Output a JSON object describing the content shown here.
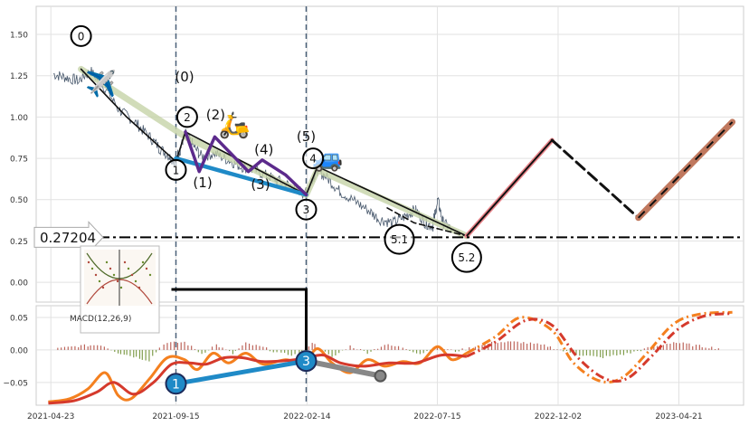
{
  "chart_data": [
    {
      "type": "line",
      "panel": "price",
      "title": "",
      "xlabel": "",
      "ylabel": "",
      "ylim": [
        -0.12,
        1.67
      ],
      "y_ticks": [
        0.0,
        0.25,
        0.5,
        0.75,
        1.0,
        1.25,
        1.5
      ],
      "y_tick_labels": [
        "0.00",
        "0.25",
        "0.50",
        "0.75",
        "1.00",
        "1.25",
        "1.50"
      ],
      "x_range": [
        "2021-04-06",
        "2023-07-05"
      ],
      "x_ticks": [
        "2021-04-23",
        "2021-09-15",
        "2022-02-14",
        "2022-07-15",
        "2022-12-02",
        "2023-04-21"
      ],
      "grid": true,
      "vertical_markers": [
        "2021-09-15",
        "2022-02-13"
      ],
      "reference_line": {
        "y": 0.27204,
        "label": "0.27204",
        "style": "dash-dot",
        "color": "#000000"
      },
      "series": [
        {
          "role": "price",
          "color": "#4a5a6e",
          "points": [
            [
              "2021-04-26",
              1.26
            ],
            [
              "2021-05-10",
              1.24
            ],
            [
              "2021-05-26",
              1.22
            ],
            [
              "2021-06-08",
              1.28
            ],
            [
              "2021-06-25",
              1.18
            ],
            [
              "2021-07-12",
              1.04
            ],
            [
              "2021-07-28",
              0.98
            ],
            [
              "2021-08-12",
              0.9
            ],
            [
              "2021-08-26",
              0.82
            ],
            [
              "2021-09-08",
              0.76
            ],
            [
              "2021-09-14",
              0.73
            ],
            [
              "2021-09-20",
              0.8
            ],
            [
              "2021-09-26",
              0.9
            ],
            [
              "2021-10-04",
              0.84
            ],
            [
              "2021-10-15",
              0.76
            ],
            [
              "2021-10-30",
              0.78
            ],
            [
              "2021-11-15",
              0.74
            ],
            [
              "2021-11-30",
              0.7
            ],
            [
              "2021-12-15",
              0.68
            ],
            [
              "2022-01-01",
              0.64
            ],
            [
              "2022-01-18",
              0.6
            ],
            [
              "2022-02-01",
              0.57
            ],
            [
              "2022-02-13",
              0.53
            ],
            [
              "2022-02-20",
              0.62
            ],
            [
              "2022-02-26",
              0.68
            ],
            [
              "2022-03-08",
              0.64
            ],
            [
              "2022-03-22",
              0.56
            ],
            [
              "2022-04-08",
              0.5
            ],
            [
              "2022-04-25",
              0.44
            ],
            [
              "2022-05-10",
              0.38
            ],
            [
              "2022-05-25",
              0.36
            ],
            [
              "2022-06-08",
              0.4
            ],
            [
              "2022-06-20",
              0.44
            ],
            [
              "2022-07-01",
              0.36
            ],
            [
              "2022-07-10",
              0.34
            ],
            [
              "2022-07-16",
              0.5
            ],
            [
              "2022-07-22",
              0.36
            ],
            [
              "2022-08-01",
              0.32
            ]
          ]
        },
        {
          "role": "trend-envelope",
          "color": "#c5d3a8",
          "points": [
            [
              "2021-05-28",
              1.29
            ],
            [
              "2021-09-26",
              0.88
            ],
            [
              "2022-02-13",
              0.53
            ],
            [
              "2022-02-26",
              0.68
            ],
            [
              "2022-08-18",
              0.28
            ]
          ]
        },
        {
          "role": "wave-path",
          "color": "#111111",
          "points": [
            [
              "2021-05-28",
              1.29
            ],
            [
              "2021-07-20",
              1.0
            ],
            [
              "2021-09-15",
              0.73
            ],
            [
              "2021-09-26",
              0.91
            ],
            [
              "2022-02-13",
              0.53
            ],
            [
              "2022-02-26",
              0.7
            ],
            [
              "2022-08-18",
              0.28
            ]
          ]
        },
        {
          "role": "wave-connector",
          "color": "#1f8ac7",
          "points": [
            [
              "2021-09-15",
              0.75
            ],
            [
              "2022-02-13",
              0.53
            ]
          ]
        },
        {
          "role": "sub-wave",
          "color": "#5c2a8c",
          "points": [
            [
              "2021-09-26",
              0.91
            ],
            [
              "2021-10-12",
              0.67
            ],
            [
              "2021-10-30",
              0.88
            ],
            [
              "2021-12-08",
              0.67
            ],
            [
              "2021-12-24",
              0.74
            ],
            [
              "2022-01-20",
              0.65
            ],
            [
              "2022-02-13",
              0.53
            ]
          ]
        },
        {
          "role": "sub-wave-5",
          "color": "#111111",
          "style": "dashed",
          "points": [
            [
              "2022-05-18",
              0.45
            ],
            [
              "2022-06-18",
              0.36
            ],
            [
              "2022-08-18",
              0.28
            ]
          ]
        },
        {
          "role": "projection-up",
          "color": "#e8848a",
          "points": [
            [
              "2022-08-18",
              0.28
            ],
            [
              "2022-11-25",
              0.86
            ]
          ]
        },
        {
          "role": "projection-down",
          "color": "#111111",
          "points": [
            [
              "2022-11-25",
              0.86
            ],
            [
              "2023-03-05",
              0.39
            ]
          ]
        },
        {
          "role": "projection-up-2",
          "color": "#c0785e",
          "points": [
            [
              "2023-03-05",
              0.39
            ],
            [
              "2023-06-22",
              0.97
            ]
          ]
        }
      ],
      "wave_labels": [
        {
          "text": "0",
          "x": "2021-05-28",
          "y": 1.49,
          "circled": true
        },
        {
          "text": "(0)",
          "x": "2021-09-25",
          "y": 1.24,
          "circled": false
        },
        {
          "text": "2",
          "x": "2021-09-28",
          "y": 1.0,
          "circled": true
        },
        {
          "text": "(2)",
          "x": "2021-10-31",
          "y": 1.01,
          "circled": false
        },
        {
          "text": "1",
          "x": "2021-09-15",
          "y": 0.68,
          "circled": true
        },
        {
          "text": "(1)",
          "x": "2021-10-16",
          "y": 0.6,
          "circled": false
        },
        {
          "text": "(4)",
          "x": "2021-12-26",
          "y": 0.8,
          "circled": false
        },
        {
          "text": "(3)",
          "x": "2021-12-22",
          "y": 0.59,
          "circled": false
        },
        {
          "text": "(5)",
          "x": "2022-02-13",
          "y": 0.88,
          "circled": false
        },
        {
          "text": "4",
          "x": "2022-02-21",
          "y": 0.75,
          "circled": true
        },
        {
          "text": "3",
          "x": "2022-02-13",
          "y": 0.44,
          "circled": true
        },
        {
          "text": "5.1",
          "x": "2022-06-01",
          "y": 0.26,
          "circled": true
        },
        {
          "text": "5.2",
          "x": "2022-08-18",
          "y": 0.15,
          "circled": true
        }
      ],
      "emoji": [
        {
          "glyph": "✈️",
          "x": "2021-06-20",
          "y": 1.15
        },
        {
          "glyph": "🛵",
          "x": "2021-11-22",
          "y": 0.9
        },
        {
          "glyph": "🚙",
          "x": "2022-03-10",
          "y": 0.7
        }
      ]
    },
    {
      "type": "line",
      "panel": "indicator",
      "legend_label": "MACD(12,26,9)",
      "ylim": [
        -0.085,
        0.068
      ],
      "y_ticks": [
        0.05,
        0.0,
        -0.05
      ],
      "y_tick_labels": [
        "0.05",
        "0.00",
        "−0.05"
      ],
      "grid": true,
      "histogram": {
        "positive_color": "#b14a3e",
        "negative_color": "#6a8c2d",
        "points": [
          [
            "2021-05-01",
            0.002
          ],
          [
            "2021-05-25",
            0.006
          ],
          [
            "2021-06-20",
            0.008
          ],
          [
            "2021-07-10",
            -0.004
          ],
          [
            "2021-07-28",
            -0.01
          ],
          [
            "2021-08-15",
            -0.016
          ],
          [
            "2021-09-01",
            0.01
          ],
          [
            "2021-09-25",
            0.012
          ],
          [
            "2021-10-15",
            -0.006
          ],
          [
            "2021-11-01",
            0.008
          ],
          [
            "2021-11-20",
            -0.006
          ],
          [
            "2021-12-05",
            0.01
          ],
          [
            "2021-12-25",
            0.004
          ],
          [
            "2022-01-15",
            -0.006
          ],
          [
            "2022-02-05",
            -0.008
          ],
          [
            "2022-02-20",
            0.012
          ],
          [
            "2022-03-15",
            -0.012
          ],
          [
            "2022-04-05",
            0.006
          ],
          [
            "2022-04-25",
            -0.004
          ],
          [
            "2022-05-15",
            0.008
          ],
          [
            "2022-06-05",
            0.004
          ],
          [
            "2022-06-25",
            -0.006
          ],
          [
            "2022-07-15",
            0.004
          ],
          [
            "2022-08-05",
            -0.002
          ],
          [
            "2022-08-25",
            0.004
          ],
          [
            "2022-09-20",
            0.012
          ],
          [
            "2022-10-20",
            0.012
          ],
          [
            "2022-11-20",
            0.006
          ],
          [
            "2022-12-20",
            -0.006
          ],
          [
            "2023-01-20",
            -0.012
          ],
          [
            "2023-02-20",
            -0.006
          ],
          [
            "2023-03-20",
            0.004
          ],
          [
            "2023-04-15",
            0.012
          ],
          [
            "2023-05-15",
            0.006
          ],
          [
            "2023-06-10",
            0.002
          ]
        ]
      },
      "series": [
        {
          "name": "MACD",
          "color": "#f4801f",
          "points": [
            [
              "2021-04-20",
              -0.08
            ],
            [
              "2021-05-15",
              -0.075
            ],
            [
              "2021-06-05",
              -0.06
            ],
            [
              "2021-06-25",
              -0.035
            ],
            [
              "2021-07-10",
              -0.07
            ],
            [
              "2021-07-25",
              -0.075
            ],
            [
              "2021-08-15",
              -0.045
            ],
            [
              "2021-09-05",
              -0.012
            ],
            [
              "2021-09-25",
              -0.015
            ],
            [
              "2021-10-10",
              -0.03
            ],
            [
              "2021-10-28",
              -0.005
            ],
            [
              "2021-11-15",
              -0.02
            ],
            [
              "2021-12-05",
              -0.005
            ],
            [
              "2021-12-25",
              -0.022
            ],
            [
              "2022-01-20",
              -0.015
            ],
            [
              "2022-02-10",
              -0.02
            ],
            [
              "2022-02-26",
              0.002
            ],
            [
              "2022-03-15",
              -0.02
            ],
            [
              "2022-04-05",
              -0.035
            ],
            [
              "2022-04-25",
              -0.015
            ],
            [
              "2022-05-15",
              -0.025
            ],
            [
              "2022-06-05",
              -0.018
            ],
            [
              "2022-06-25",
              -0.02
            ],
            [
              "2022-07-15",
              0.005
            ],
            [
              "2022-08-01",
              -0.015
            ],
            [
              "2022-08-18",
              -0.005
            ],
            [
              "2022-09-20",
              0.02
            ],
            [
              "2022-10-20",
              0.05
            ],
            [
              "2022-11-25",
              0.03
            ],
            [
              "2022-12-20",
              -0.02
            ],
            [
              "2023-01-20",
              -0.048
            ],
            [
              "2023-02-15",
              -0.042
            ],
            [
              "2023-03-15",
              -0.005
            ],
            [
              "2023-04-15",
              0.04
            ],
            [
              "2023-05-15",
              0.055
            ],
            [
              "2023-06-22",
              0.058
            ]
          ]
        },
        {
          "name": "Signal",
          "color": "#d53a2c",
          "points": [
            [
              "2021-04-20",
              -0.082
            ],
            [
              "2021-05-20",
              -0.078
            ],
            [
              "2021-06-15",
              -0.065
            ],
            [
              "2021-07-05",
              -0.05
            ],
            [
              "2021-07-28",
              -0.068
            ],
            [
              "2021-08-20",
              -0.05
            ],
            [
              "2021-09-10",
              -0.022
            ],
            [
              "2021-10-01",
              -0.02
            ],
            [
              "2021-10-20",
              -0.022
            ],
            [
              "2021-11-10",
              -0.012
            ],
            [
              "2021-12-01",
              -0.012
            ],
            [
              "2021-12-25",
              -0.018
            ],
            [
              "2022-01-25",
              -0.016
            ],
            [
              "2022-02-14",
              -0.012
            ],
            [
              "2022-03-05",
              -0.008
            ],
            [
              "2022-03-25",
              -0.02
            ],
            [
              "2022-04-20",
              -0.025
            ],
            [
              "2022-05-20",
              -0.02
            ],
            [
              "2022-06-20",
              -0.02
            ],
            [
              "2022-07-20",
              -0.008
            ],
            [
              "2022-08-18",
              -0.01
            ],
            [
              "2022-09-20",
              0.012
            ],
            [
              "2022-10-25",
              0.045
            ],
            [
              "2022-11-25",
              0.038
            ],
            [
              "2022-12-25",
              -0.012
            ],
            [
              "2023-01-25",
              -0.044
            ],
            [
              "2023-02-20",
              -0.044
            ],
            [
              "2023-03-20",
              -0.01
            ],
            [
              "2023-04-20",
              0.032
            ],
            [
              "2023-05-20",
              0.052
            ],
            [
              "2023-06-22",
              0.056
            ]
          ]
        },
        {
          "role": "divergence",
          "color": "#1f8ac7",
          "points": [
            [
              "2021-09-15",
              -0.052
            ],
            [
              "2022-02-13",
              -0.017
            ]
          ]
        },
        {
          "role": "divergence-tail",
          "color": "#888888",
          "points": [
            [
              "2022-02-13",
              -0.017
            ],
            [
              "2022-05-10",
              -0.04
            ]
          ]
        }
      ],
      "pivot_labels": [
        {
          "text": "1",
          "x": "2021-09-15",
          "y": -0.052
        },
        {
          "text": "3",
          "x": "2022-02-13",
          "y": -0.017
        }
      ]
    }
  ],
  "annotation_box": {
    "y": 0.27204,
    "label": "0.27204"
  },
  "connector": {
    "from_date": "2021-09-15",
    "to_date": "2022-02-13"
  }
}
